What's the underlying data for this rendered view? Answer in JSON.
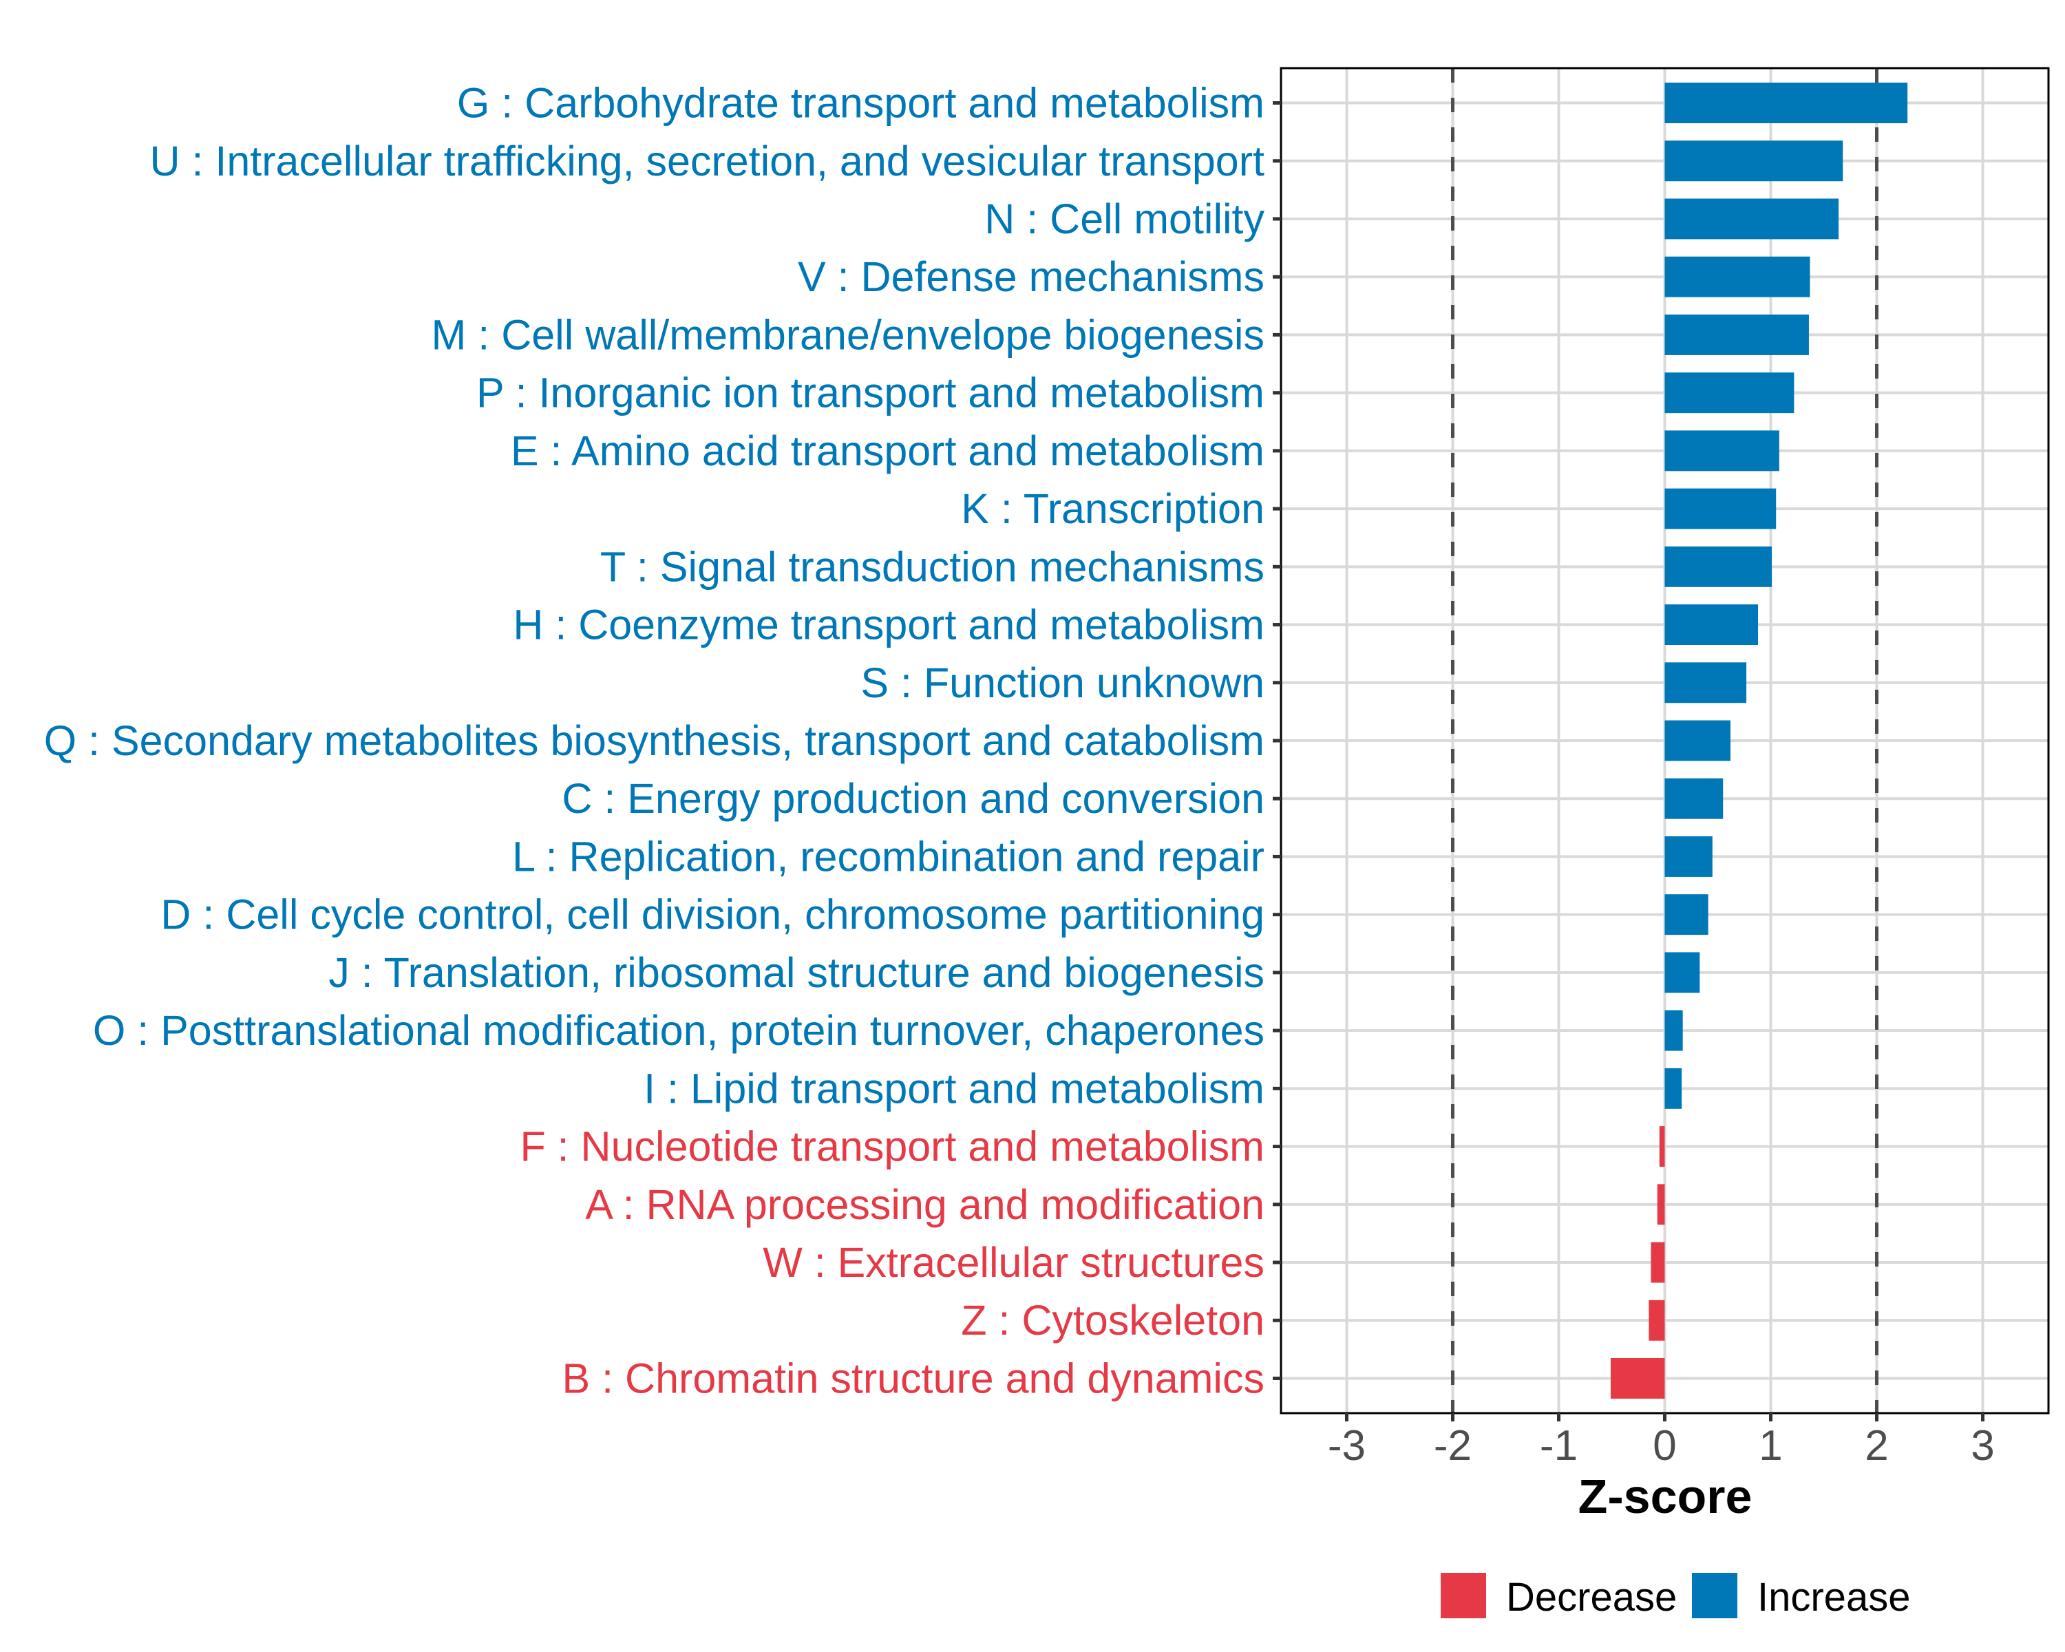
{
  "chart_data": {
    "type": "bar",
    "orientation": "horizontal",
    "title": "",
    "xlabel": "Z-score",
    "ylabel": "",
    "xlim": [
      -3.62,
      3.62
    ],
    "xticks": [
      -3,
      -2,
      -1,
      0,
      1,
      2,
      3
    ],
    "xtick_labels": [
      "-3",
      "-2",
      "-1",
      "0",
      "1",
      "2",
      "3"
    ],
    "reference_lines": [
      {
        "x": -2,
        "style": "dashed",
        "color": "#4D4D4D"
      },
      {
        "x": 2,
        "style": "dashed",
        "color": "#4D4D4D"
      }
    ],
    "grid": true,
    "categories": [
      "G : Carbohydrate transport and metabolism",
      "U : Intracellular trafficking, secretion, and vesicular transport",
      "N : Cell motility",
      "V : Defense mechanisms",
      "M : Cell wall/membrane/envelope biogenesis",
      "P : Inorganic ion transport and metabolism",
      "E : Amino acid transport and metabolism",
      "K : Transcription",
      "T : Signal transduction mechanisms",
      "H : Coenzyme transport and metabolism",
      "S : Function unknown",
      "Q : Secondary metabolites biosynthesis, transport and catabolism",
      "C : Energy production and conversion",
      "L : Replication, recombination and repair",
      "D : Cell cycle control, cell division, chromosome partitioning",
      "J : Translation, ribosomal structure and biogenesis",
      "O : Posttranslational modification, protein turnover, chaperones",
      "I : Lipid transport and metabolism",
      "F : Nucleotide transport and metabolism",
      "A : RNA processing and modification",
      "W : Extracellular structures",
      "Z : Cytoskeleton",
      "B : Chromatin structure and dynamics"
    ],
    "values": [
      2.29,
      1.68,
      1.64,
      1.37,
      1.36,
      1.22,
      1.08,
      1.05,
      1.01,
      0.88,
      0.77,
      0.62,
      0.55,
      0.45,
      0.41,
      0.33,
      0.17,
      0.16,
      -0.05,
      -0.07,
      -0.13,
      -0.15,
      -0.51
    ],
    "groups": [
      "Increase",
      "Increase",
      "Increase",
      "Increase",
      "Increase",
      "Increase",
      "Increase",
      "Increase",
      "Increase",
      "Increase",
      "Increase",
      "Increase",
      "Increase",
      "Increase",
      "Increase",
      "Increase",
      "Increase",
      "Increase",
      "Decrease",
      "Decrease",
      "Decrease",
      "Decrease",
      "Decrease"
    ],
    "legend": {
      "placement": "bottom",
      "entries": [
        {
          "name": "Decrease",
          "color": "#E63946"
        },
        {
          "name": "Increase",
          "color": "#0077B6"
        }
      ]
    }
  },
  "colors": {
    "increase": "#0077B6",
    "decrease": "#E63946",
    "grid": "#D9D9D9",
    "axis_text": "#4D4D4D",
    "dashed_line": "#4D4D4D",
    "panel_border": "#000000"
  }
}
